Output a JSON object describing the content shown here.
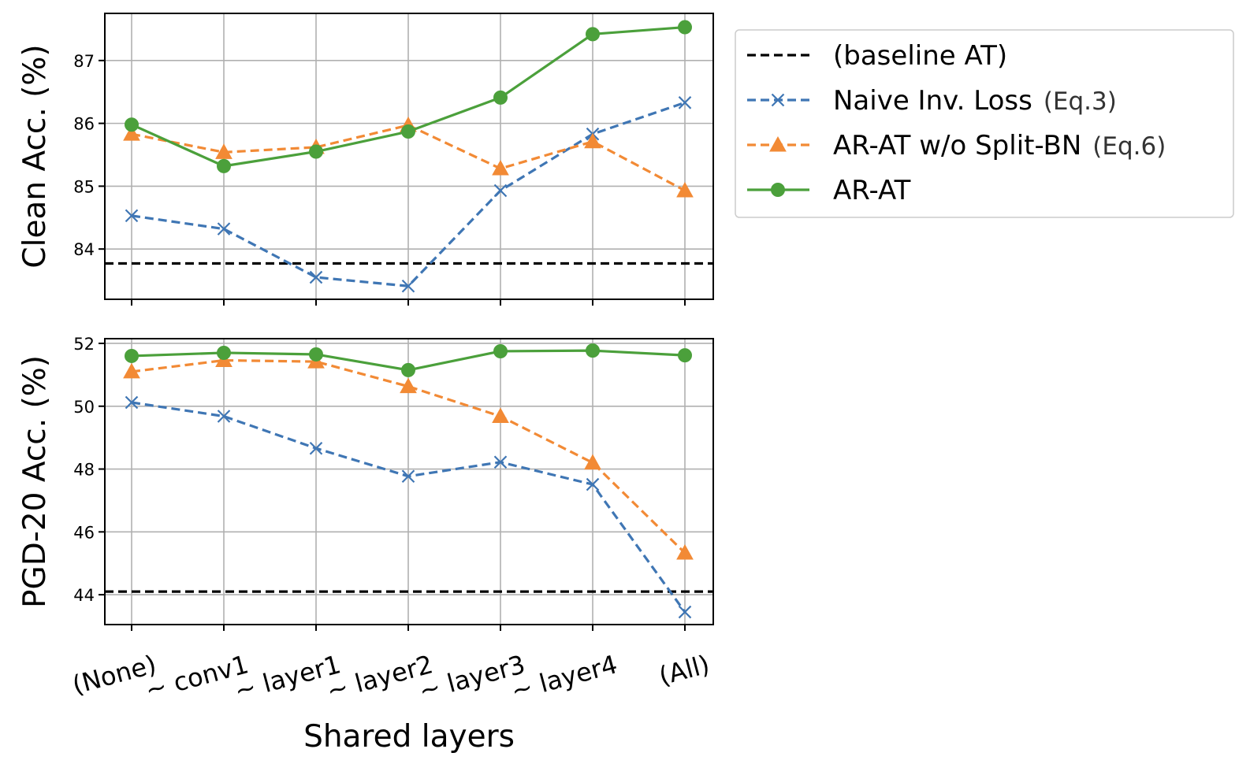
{
  "chart_data": {
    "type": "line",
    "x_categories": [
      "(None)",
      "~ conv1",
      "~ layer1",
      "~ layer2",
      "~ layer3",
      "~ layer4",
      "(All)"
    ],
    "xlabel": "Shared layers",
    "legend": {
      "placement": "right-of-top-panel",
      "entries": [
        {
          "label": "(baseline AT)",
          "eq": "",
          "color": "#000000",
          "style": "dashed",
          "marker": "none"
        },
        {
          "label": "Naive Inv. Loss",
          "eq": "(Eq.3)",
          "color": "#3f76b4",
          "style": "dashed",
          "marker": "x"
        },
        {
          "label": "AR-AT w/o Split-BN",
          "eq": "(Eq.6)",
          "color": "#f28a35",
          "style": "dashed",
          "marker": "triangle"
        },
        {
          "label": "AR-AT",
          "eq": "",
          "color": "#4ba03b",
          "style": "solid",
          "marker": "circle"
        }
      ]
    },
    "panels": [
      {
        "ylabel": "Clean Acc. (%)",
        "ylim": [
          83.2,
          87.75
        ],
        "yticks": [
          84,
          85,
          86,
          87
        ],
        "baseline": 83.77,
        "series": [
          {
            "name": "Naive Inv. Loss",
            "values": [
              84.53,
              84.32,
              83.55,
              83.41,
              84.93,
              85.83,
              86.33
            ]
          },
          {
            "name": "AR-AT w/o Split-BN",
            "values": [
              85.83,
              85.54,
              85.62,
              85.97,
              85.28,
              85.71,
              84.93
            ]
          },
          {
            "name": "AR-AT",
            "values": [
              85.98,
              85.32,
              85.55,
              85.87,
              86.41,
              87.42,
              87.53
            ]
          }
        ]
      },
      {
        "ylabel": "PGD-20 Acc. (%)",
        "ylim": [
          43.05,
          52.15
        ],
        "yticks": [
          44,
          46,
          48,
          50,
          52
        ],
        "baseline": 44.1,
        "series": [
          {
            "name": "Naive Inv. Loss",
            "values": [
              50.12,
              49.68,
              48.66,
              47.77,
              48.22,
              47.51,
              43.45
            ]
          },
          {
            "name": "AR-AT w/o Split-BN",
            "values": [
              51.1,
              51.46,
              51.42,
              50.63,
              49.68,
              48.2,
              45.33
            ]
          },
          {
            "name": "AR-AT",
            "values": [
              51.6,
              51.7,
              51.65,
              51.15,
              51.75,
              51.77,
              51.62
            ]
          }
        ]
      }
    ]
  }
}
